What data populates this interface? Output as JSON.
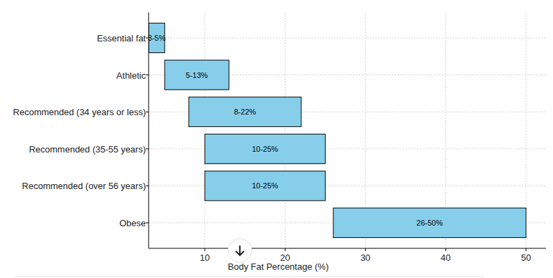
{
  "chart_data": {
    "type": "bar",
    "orientation": "horizontal",
    "categories": [
      "Essential fat",
      "Athletic",
      "Recommended (34 years or less)",
      "Recommended (35-55 years)",
      "Recommended (over 56 years)",
      "Obese"
    ],
    "values": [
      [
        3,
        5
      ],
      [
        5,
        13
      ],
      [
        8,
        22
      ],
      [
        10,
        25
      ],
      [
        10,
        25
      ],
      [
        26,
        50
      ]
    ],
    "value_labels": [
      "3-5%",
      "5-13%",
      "8-22%",
      "10-25%",
      "10-25%",
      "26-50%"
    ],
    "data_labels": true,
    "color": "#87ceeb",
    "x_label": "Body Fat Percentage (%)",
    "xlim": [
      3,
      52.5
    ],
    "xticks": [
      10,
      20,
      30,
      40,
      50
    ],
    "grid": true
  }
}
